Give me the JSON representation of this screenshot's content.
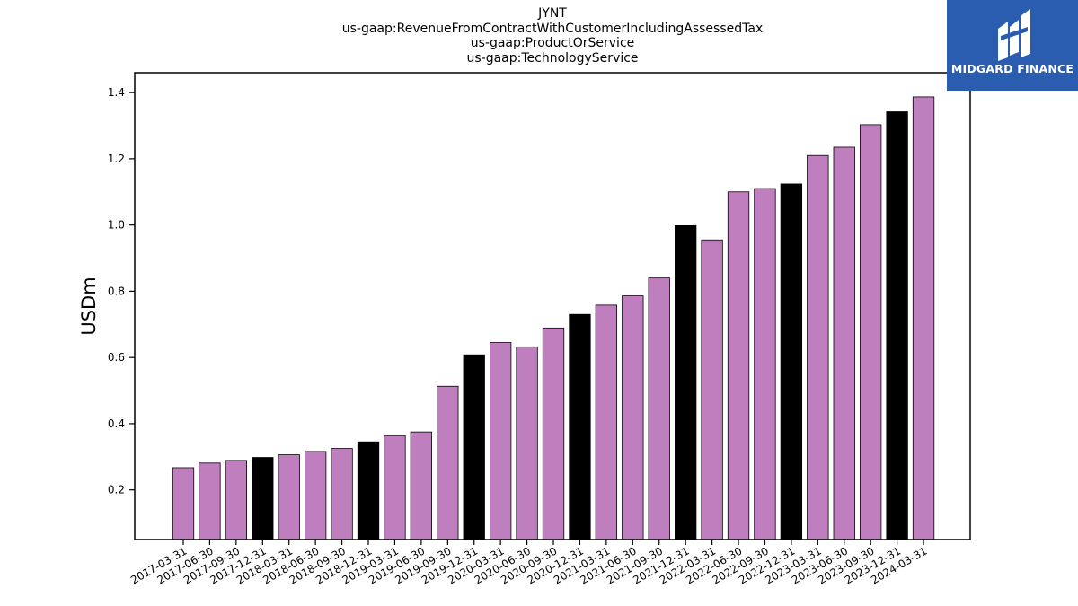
{
  "chart_data": {
    "type": "bar",
    "title_lines": [
      "JYNT",
      "us-gaap:RevenueFromContractWithCustomerIncludingAssessedTax",
      "us-gaap:ProductOrService",
      "us-gaap:TechnologyService"
    ],
    "ylabel": "USDm",
    "xlabel": "",
    "ylim": [
      0.05,
      1.46
    ],
    "yticks": [
      0.2,
      0.4,
      0.6,
      0.8,
      1.0,
      1.2,
      1.4
    ],
    "grid": false,
    "categories": [
      "2017-03-31",
      "2017-06-30",
      "2017-09-30",
      "2017-12-31",
      "2018-03-31",
      "2018-06-30",
      "2018-09-30",
      "2018-12-31",
      "2019-03-31",
      "2019-06-30",
      "2019-09-30",
      "2019-12-31",
      "2020-03-31",
      "2020-06-30",
      "2020-09-30",
      "2020-12-31",
      "2021-03-31",
      "2021-06-30",
      "2021-09-30",
      "2021-12-31",
      "2022-03-31",
      "2022-06-30",
      "2022-09-30",
      "2022-12-31",
      "2023-03-31",
      "2023-06-30",
      "2023-09-30",
      "2023-12-31",
      "2024-03-31"
    ],
    "values": [
      0.267,
      0.281,
      0.289,
      0.298,
      0.306,
      0.316,
      0.325,
      0.345,
      0.364,
      0.375,
      0.513,
      0.608,
      0.645,
      0.632,
      0.689,
      0.73,
      0.758,
      0.786,
      0.84,
      0.998,
      0.955,
      1.1,
      1.11,
      1.124,
      1.21,
      1.235,
      1.303,
      1.342,
      1.387
    ],
    "highlight_quarter": "12-31",
    "colors": {
      "default": "#bf7fbf",
      "highlight": "#000000",
      "edge": "#000000"
    }
  },
  "logo": {
    "text": "MIDGARD FINANCE",
    "background": "#2a5cb0"
  }
}
